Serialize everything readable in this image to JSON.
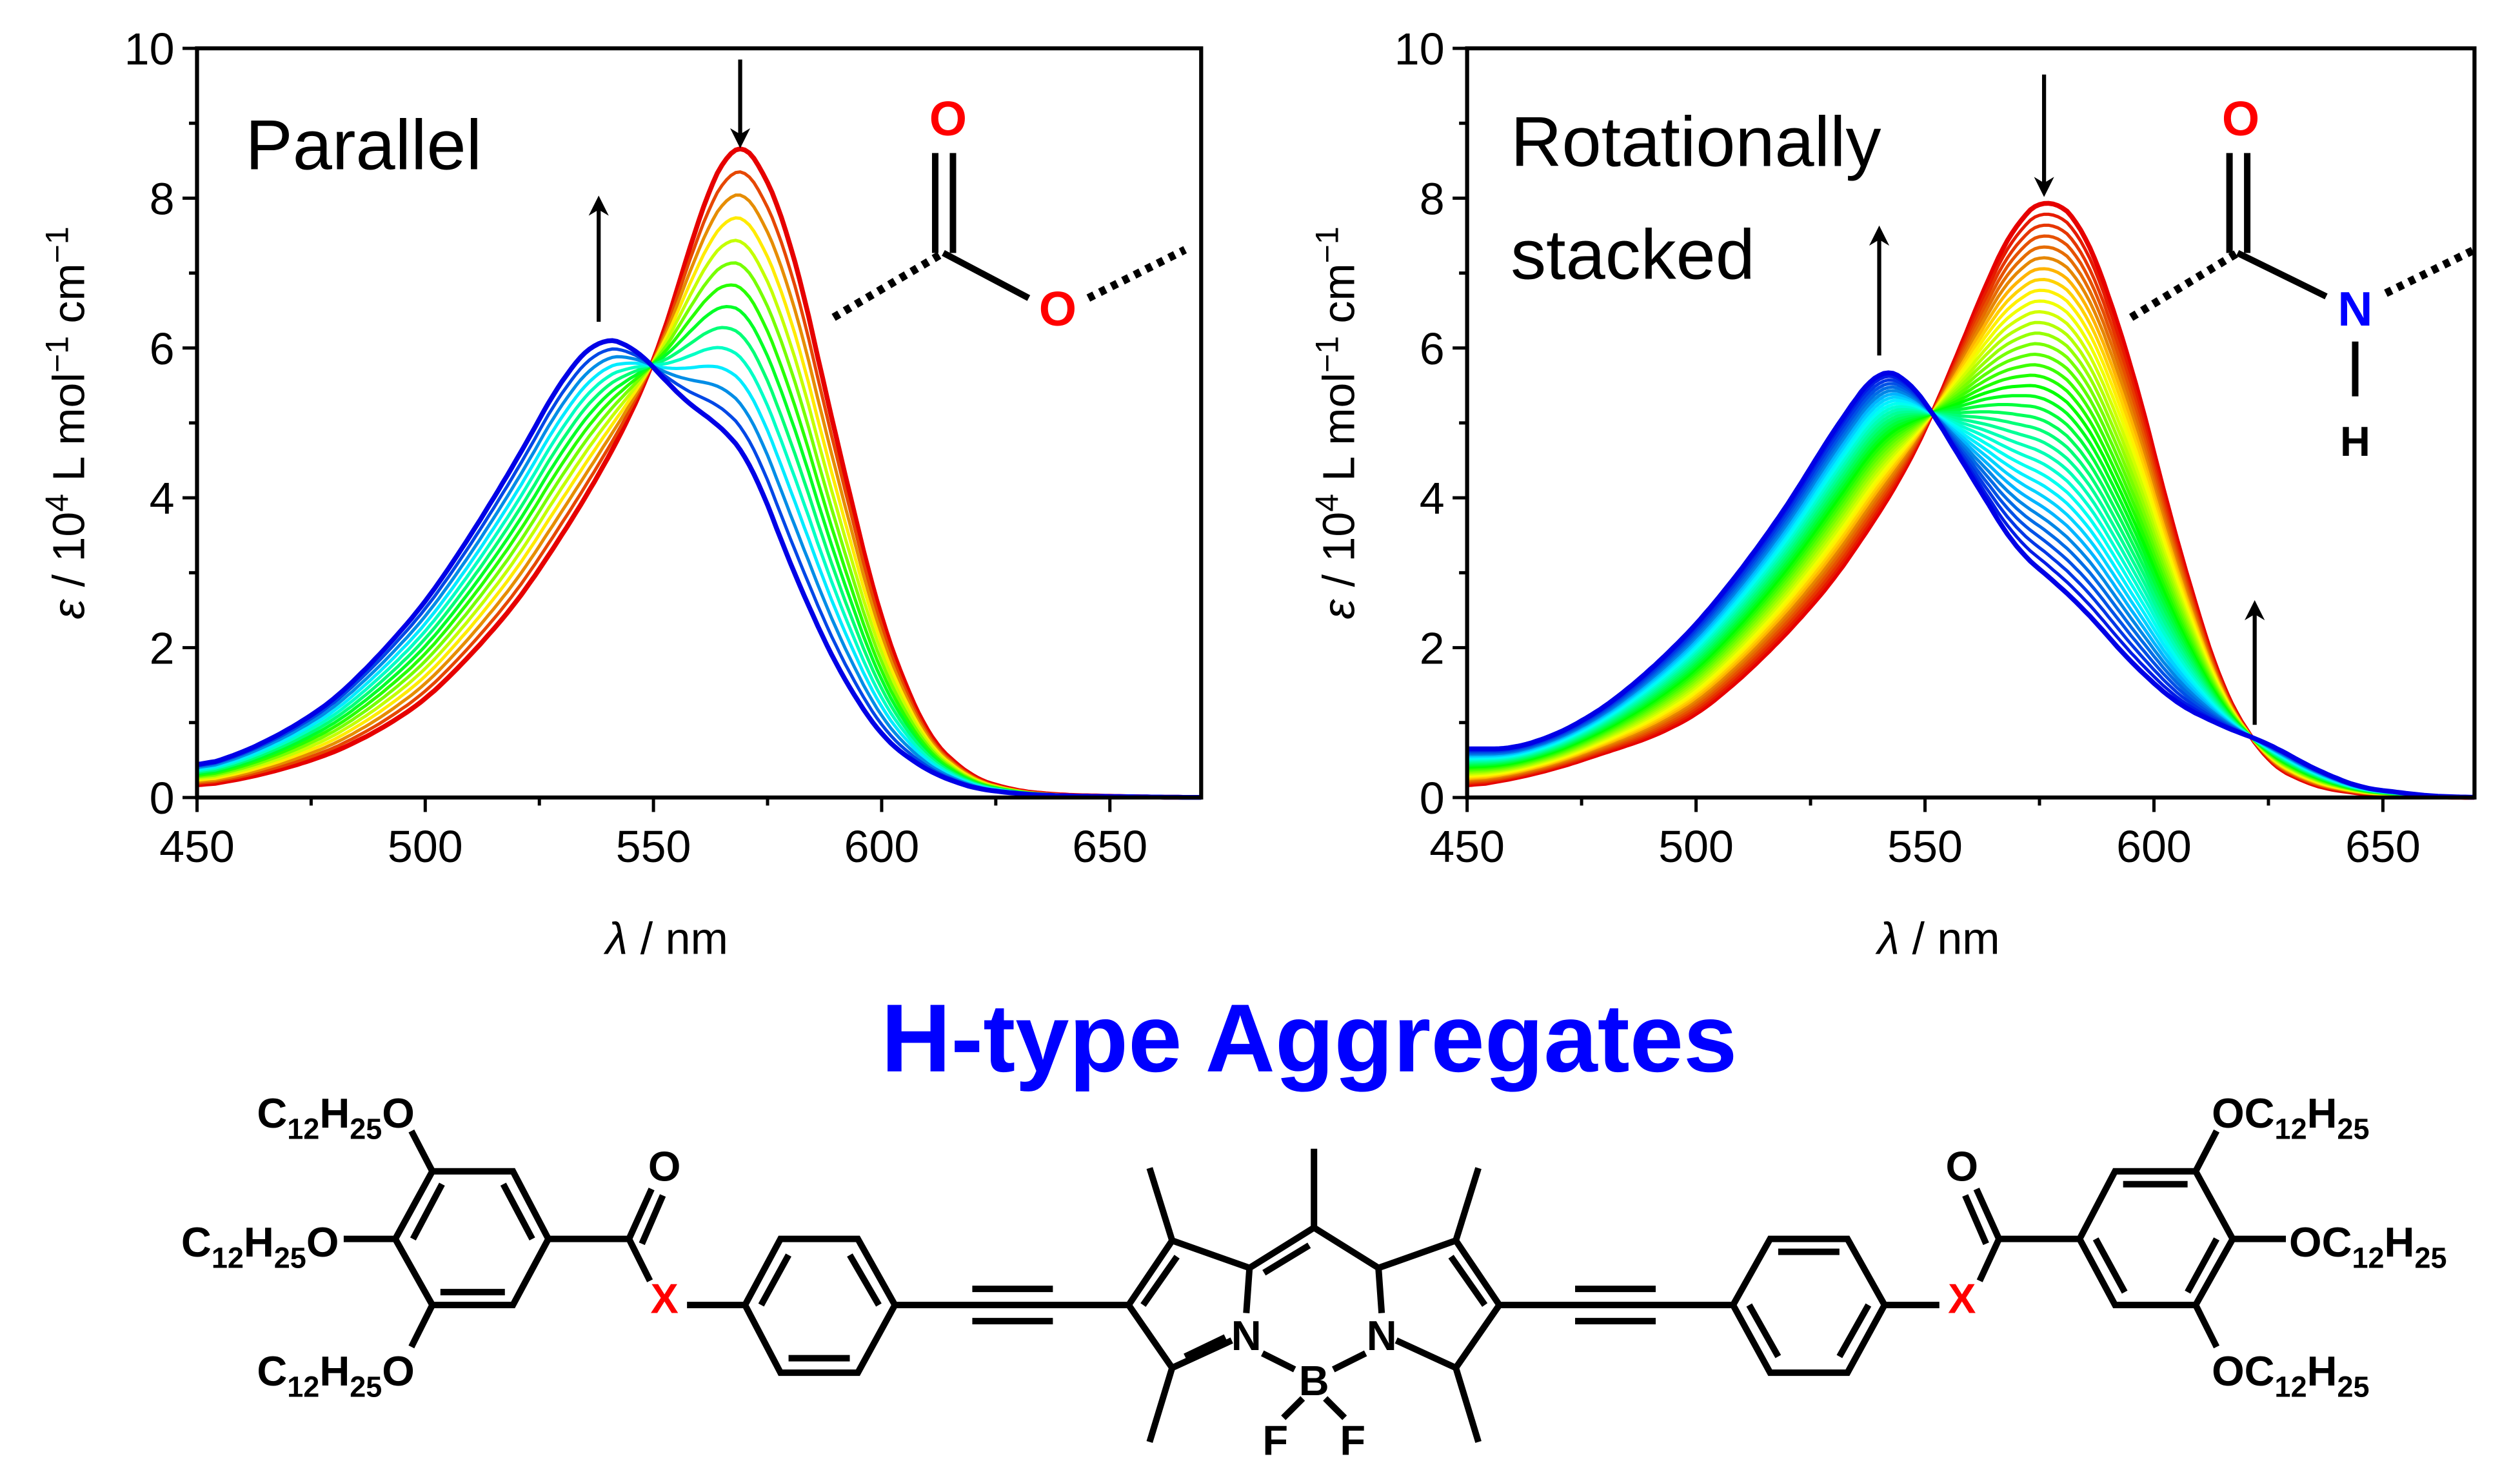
{
  "title": "H-type Aggregates",
  "colors": {
    "title": "#0000ff",
    "oxygen": "#ff0000",
    "nitrogen": "#0000ff",
    "x_group": "#ff0000",
    "ink": "#000000"
  },
  "chart_data": [
    {
      "type": "line",
      "panel_label": [
        "Parallel"
      ],
      "xlabel_symbol": "λ",
      "xlabel_unit": " / nm",
      "ylabel_parts": [
        "ε",
        " / 10",
        "4",
        " L mol",
        "−1",
        " cm",
        "−1"
      ],
      "xlim": [
        450,
        670
      ],
      "ylim": [
        0,
        10
      ],
      "xticks": [
        450,
        500,
        550,
        600,
        650
      ],
      "yticks": [
        0,
        2,
        4,
        6,
        8,
        10
      ],
      "grid": false,
      "n_traces": 14,
      "color_gradient": [
        "red",
        "blue"
      ],
      "x": [
        450,
        460,
        470,
        480,
        490,
        500,
        510,
        520,
        530,
        538,
        545,
        550,
        555,
        560,
        565,
        568,
        572,
        580,
        590,
        600,
        610,
        620,
        630,
        640,
        655,
        670
      ],
      "series": [
        {
          "name": "initial (red)",
          "values": [
            0.15,
            0.25,
            0.4,
            0.6,
            0.9,
            1.3,
            1.9,
            2.6,
            3.5,
            4.3,
            5.1,
            5.8,
            6.7,
            7.8,
            8.5,
            8.8,
            8.65,
            7.5,
            4.8,
            2.3,
            0.8,
            0.25,
            0.08,
            0.03,
            0.01,
            0
          ]
        },
        {
          "name": "final (blue)",
          "values": [
            0.4,
            0.6,
            0.9,
            1.3,
            1.9,
            2.6,
            3.5,
            4.5,
            5.6,
            6.15,
            6.05,
            5.75,
            5.4,
            5.15,
            4.95,
            4.75,
            4.4,
            3.1,
            1.75,
            0.8,
            0.35,
            0.12,
            0.05,
            0.02,
            0.01,
            0
          ]
        }
      ],
      "arrows": [
        {
          "direction": "up",
          "x": 538,
          "y_from": 6.35,
          "y_to": 7.9
        },
        {
          "direction": "down",
          "x": 569,
          "y_from": 9.85,
          "y_to": 8.8
        }
      ],
      "linkage": {
        "label": "ester",
        "atoms": [
          "O",
          "O"
        ]
      }
    },
    {
      "type": "line",
      "panel_label": [
        "Rotationally",
        "stacked"
      ],
      "xlabel_symbol": "λ",
      "xlabel_unit": " / nm",
      "ylabel_parts": [
        "ε",
        " / 10",
        "4",
        " L mol",
        "−1",
        " cm",
        "−1"
      ],
      "xlim": [
        450,
        670
      ],
      "ylim": [
        0,
        10
      ],
      "xticks": [
        450,
        500,
        550,
        600,
        650
      ],
      "yticks": [
        0,
        2,
        4,
        6,
        8,
        10
      ],
      "grid": false,
      "n_traces": 35,
      "color_gradient": [
        "red",
        "blue"
      ],
      "x": [
        450,
        460,
        470,
        480,
        490,
        500,
        510,
        520,
        530,
        540,
        545,
        550,
        555,
        565,
        570,
        577,
        585,
        595,
        605,
        615,
        625,
        635,
        645,
        660,
        670
      ],
      "series": [
        {
          "name": "initial (red)",
          "values": [
            0.15,
            0.25,
            0.4,
            0.6,
            0.8,
            1.1,
            1.6,
            2.2,
            2.9,
            3.8,
            4.3,
            4.9,
            5.6,
            7.1,
            7.7,
            8.05,
            7.6,
            5.8,
            3.4,
            1.4,
            0.45,
            0.15,
            0.05,
            0.01,
            0
          ]
        },
        {
          "name": "final (blue)",
          "values": [
            0.65,
            0.65,
            0.85,
            1.2,
            1.7,
            2.3,
            3.05,
            3.9,
            4.9,
            5.75,
            5.65,
            5.3,
            4.8,
            3.8,
            3.3,
            2.95,
            2.5,
            1.8,
            1.25,
            0.95,
            0.72,
            0.38,
            0.13,
            0.02,
            0
          ]
        }
      ],
      "arrows": [
        {
          "direction": "up",
          "x": 540,
          "y_from": 5.9,
          "y_to": 7.5
        },
        {
          "direction": "down",
          "x": 576,
          "y_from": 9.65,
          "y_to": 8.15
        },
        {
          "direction": "up",
          "x": 622,
          "y_from": 0.97,
          "y_to": 2.5
        }
      ],
      "linkage": {
        "label": "amide",
        "atoms": [
          "O",
          "N",
          "H"
        ]
      }
    }
  ],
  "structure": {
    "left_chains": [
      [
        "C",
        "12",
        "H",
        "25",
        "O"
      ],
      [
        "C",
        "12",
        "H",
        "25",
        "O"
      ],
      [
        "C",
        "12",
        "H",
        "25",
        "O"
      ]
    ],
    "right_chains": [
      [
        "OC",
        "12",
        "H",
        "25"
      ],
      [
        "OC",
        "12",
        "H",
        "25"
      ],
      [
        "OC",
        "12",
        "H",
        "25"
      ]
    ],
    "carbonyl_O": "O",
    "linker": "X",
    "core_atoms": {
      "N": "N",
      "B": "B",
      "F": "F"
    }
  }
}
